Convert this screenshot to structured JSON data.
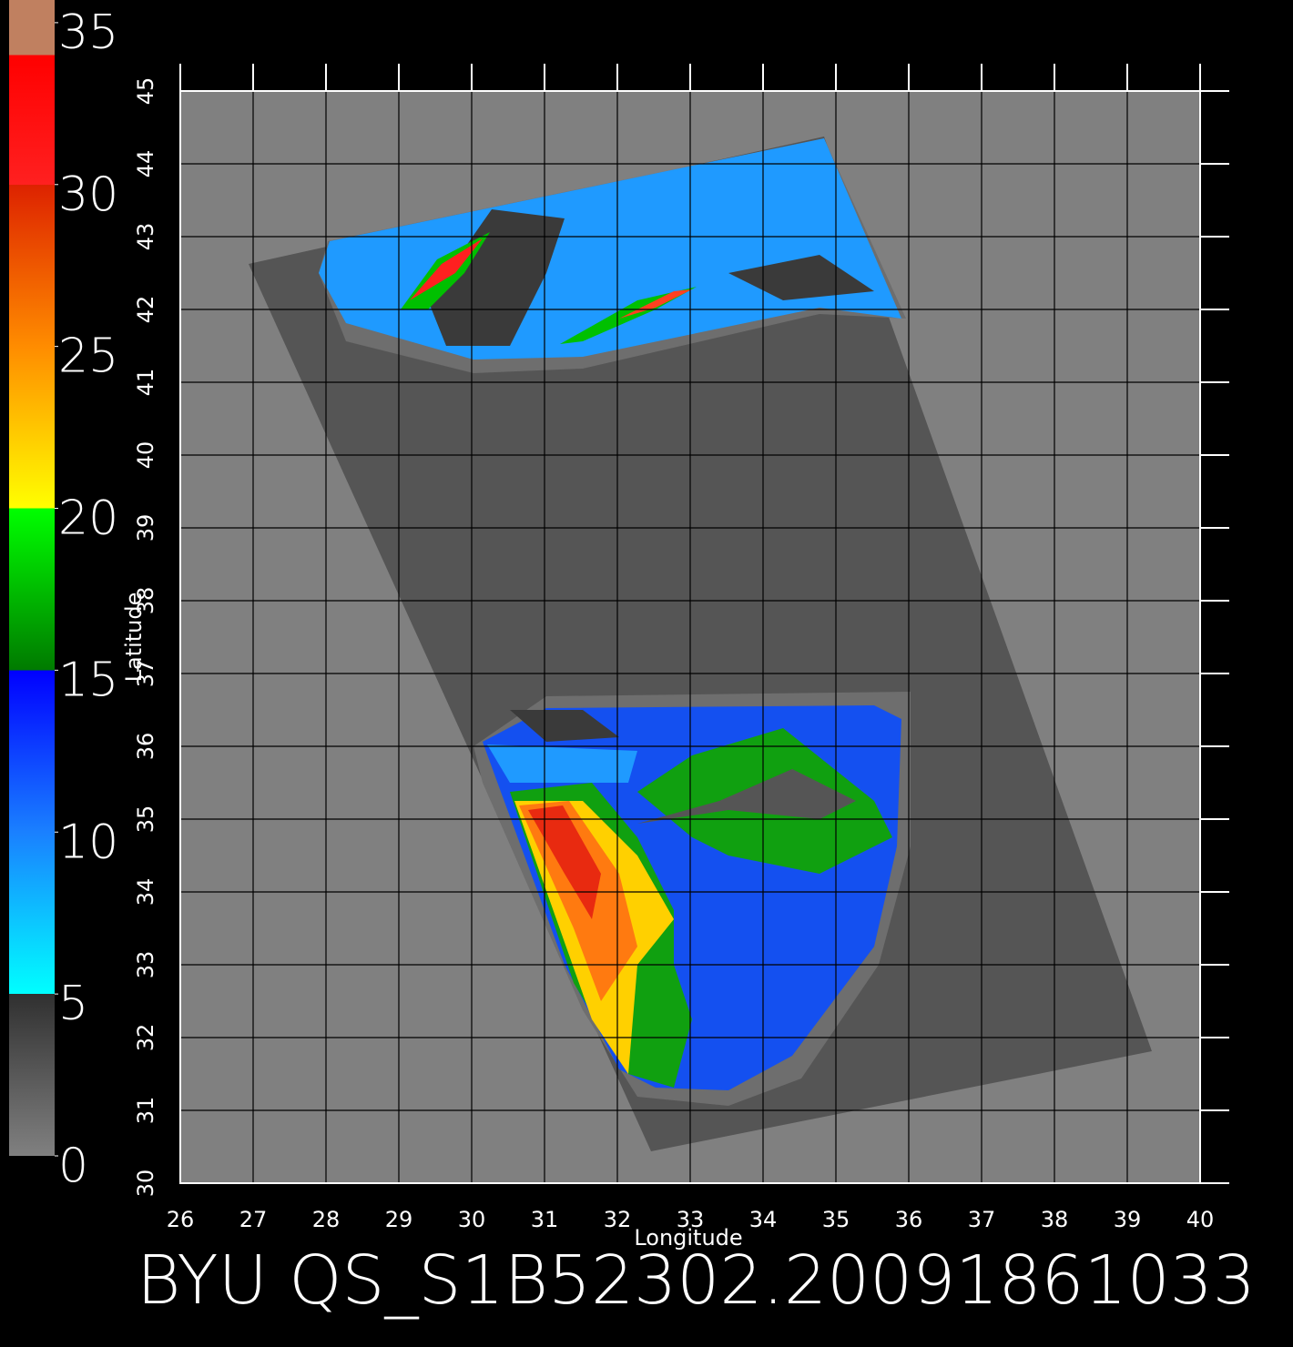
{
  "chart_data": {
    "type": "map",
    "title": "BYU QS_S1B52302.20091861033",
    "x_label": "Longitude",
    "y_label": "Latitude",
    "xlim": [
      26,
      40
    ],
    "ylim": [
      30,
      45
    ],
    "xticks": [
      26,
      27,
      28,
      29,
      30,
      31,
      32,
      33,
      34,
      35,
      36,
      37,
      38,
      39,
      40
    ],
    "yticks": [
      30,
      31,
      32,
      33,
      34,
      35,
      36,
      37,
      38,
      39,
      40,
      41,
      42,
      43,
      44,
      45
    ],
    "grid": true,
    "colorbar": {
      "lim": [
        0,
        35.7
      ],
      "ticks": [
        0,
        5,
        10,
        15,
        20,
        25,
        30,
        35
      ],
      "stops": [
        {
          "value": 0,
          "color": "#808080"
        },
        {
          "value": 5,
          "color": "#303030"
        },
        {
          "value": 5,
          "color": "#00ffff"
        },
        {
          "value": 10,
          "color": "#1a80ff"
        },
        {
          "value": 15,
          "color": "#0000ff"
        },
        {
          "value": 15,
          "color": "#007a00"
        },
        {
          "value": 20,
          "color": "#00ff00"
        },
        {
          "value": 20,
          "color": "#ffff00"
        },
        {
          "value": 25,
          "color": "#ff8c00"
        },
        {
          "value": 30,
          "color": "#dd2200"
        },
        {
          "value": 30,
          "color": "#ff2020"
        },
        {
          "value": 34,
          "color": "#ff0000"
        },
        {
          "value": 34,
          "color": "#c08060"
        }
      ]
    }
  }
}
